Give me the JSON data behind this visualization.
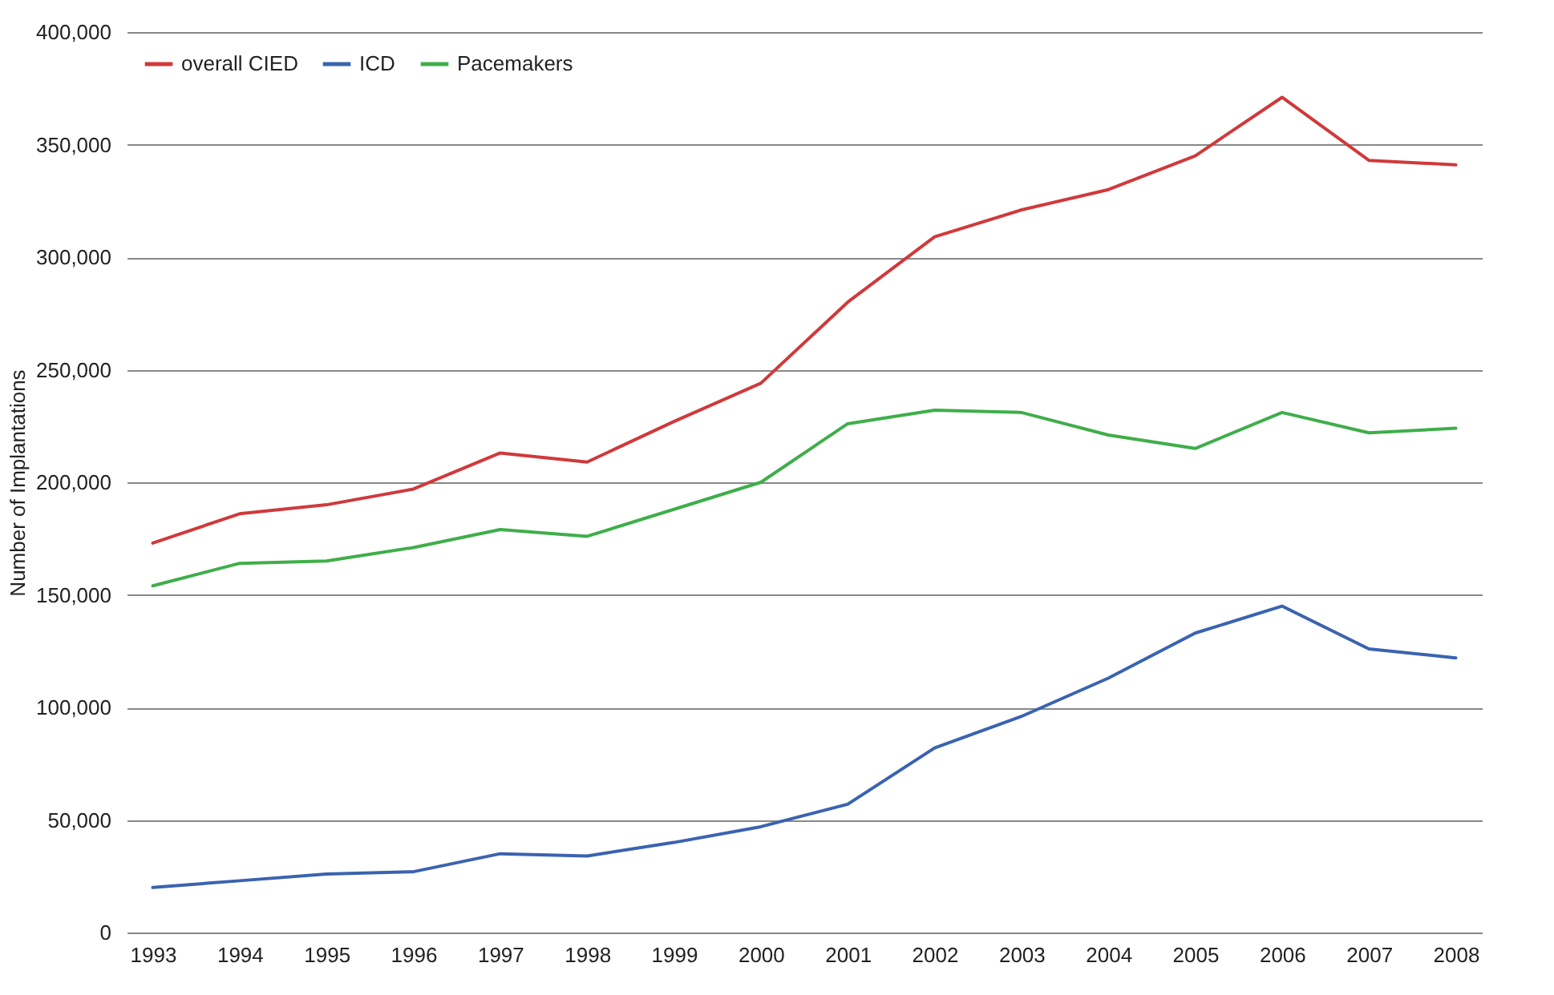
{
  "chart_data": {
    "type": "line",
    "ylabel": "Number of Implantations",
    "categories": [
      "1993",
      "1994",
      "1995",
      "1996",
      "1997",
      "1998",
      "1999",
      "2000",
      "2001",
      "2002",
      "2003",
      "2004",
      "2005",
      "2006",
      "2007",
      "2008"
    ],
    "series": [
      {
        "name": "overall CIED",
        "color": "#d0393b",
        "values": [
          173000,
          186000,
          190000,
          197000,
          213000,
          209000,
          227000,
          244000,
          280000,
          309000,
          321000,
          330000,
          345000,
          371000,
          343000,
          341000
        ]
      },
      {
        "name": "ICD",
        "color": "#3a63b0",
        "values": [
          20000,
          23000,
          26000,
          27000,
          35000,
          34000,
          40000,
          47000,
          57000,
          82000,
          96000,
          113000,
          133000,
          145000,
          126000,
          122000
        ]
      },
      {
        "name": "Pacemakers",
        "color": "#3fae4a",
        "values": [
          154000,
          164000,
          165000,
          171000,
          179000,
          176000,
          188000,
          200000,
          226000,
          232000,
          231000,
          221000,
          215000,
          231000,
          222000,
          224000
        ]
      }
    ],
    "ylim": [
      0,
      400000
    ],
    "yticks": [
      0,
      {
        "value": 50000,
        "label": "50,000"
      },
      {
        "value": 100000,
        "label": "100,000"
      },
      {
        "value": 150000,
        "label": "150,000"
      },
      {
        "value": 200000,
        "label": "200,000"
      },
      {
        "value": 250000,
        "label": "250,000"
      },
      {
        "value": 300000,
        "label": "300,000"
      },
      {
        "value": 350000,
        "label": "350,000"
      },
      {
        "value": 400000,
        "label": "400,000"
      }
    ],
    "grid": "y",
    "legend": "top left",
    "marker": "none",
    "line_style": "solid"
  }
}
